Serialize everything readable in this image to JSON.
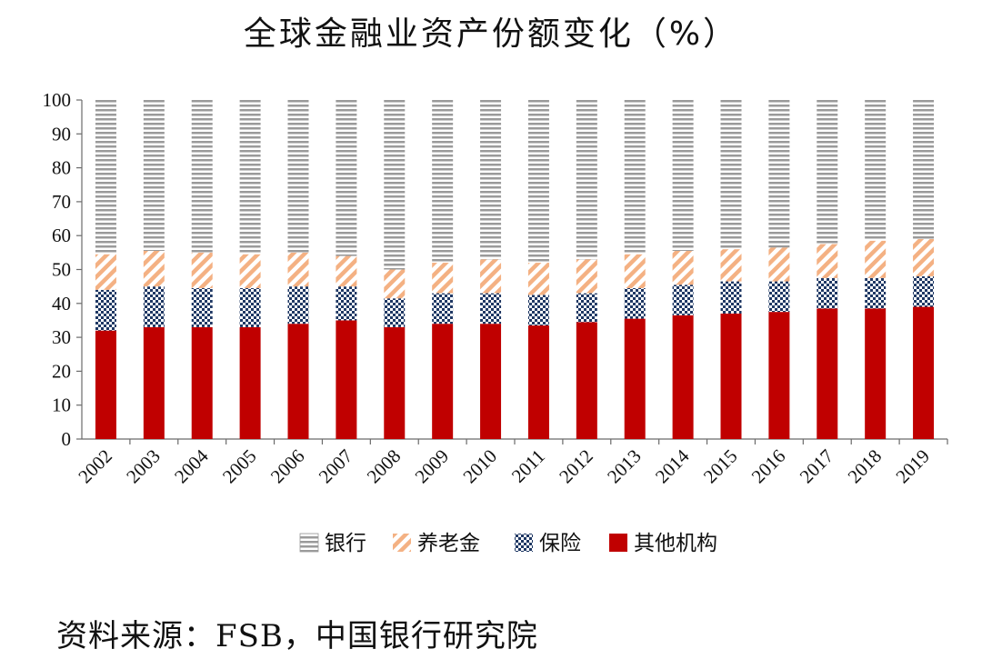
{
  "chart_data": {
    "type": "bar",
    "stacked": true,
    "title": "全球金融业资产份额变化（%）",
    "categories": [
      "2002",
      "2003",
      "2004",
      "2005",
      "2006",
      "2007",
      "2008",
      "2009",
      "2010",
      "2011",
      "2012",
      "2013",
      "2014",
      "2015",
      "2016",
      "2017",
      "2018",
      "2019"
    ],
    "yticks": [
      "0",
      "10",
      "20",
      "30",
      "40",
      "50",
      "60",
      "70",
      "80",
      "90",
      "100"
    ],
    "ylim": [
      0,
      100
    ],
    "series": [
      {
        "name": "其他机构",
        "color": "#c00000",
        "pattern": "solid",
        "values": [
          32,
          33,
          33,
          33,
          34,
          35,
          33,
          34,
          34,
          33.5,
          34.5,
          35.5,
          36.5,
          37,
          37.5,
          38.5,
          38.5,
          39
        ]
      },
      {
        "name": "保险",
        "color": "#1f3864",
        "pattern": "checker",
        "values": [
          12,
          12,
          11.5,
          11.5,
          11,
          10,
          8.5,
          9,
          9,
          9,
          8.5,
          9,
          9,
          9.5,
          9,
          9,
          9,
          9
        ]
      },
      {
        "name": "养老金",
        "color": "#f4b183",
        "pattern": "diagonal",
        "values": [
          10.5,
          10.5,
          10.5,
          10,
          10,
          9,
          8.5,
          9,
          10,
          9.5,
          10,
          10,
          10,
          9.5,
          10,
          10,
          11,
          11
        ]
      },
      {
        "name": "银行",
        "color": "#9a9a9a",
        "pattern": "horizontal",
        "values": [
          45.5,
          44.5,
          45,
          45.5,
          45,
          46,
          50,
          48,
          47,
          48,
          47,
          45.5,
          44.5,
          44,
          43.5,
          42.5,
          41.5,
          41
        ]
      }
    ],
    "legend": {
      "position": "bottom",
      "order": [
        "银行",
        "养老金",
        "保险",
        "其他机构"
      ]
    }
  },
  "source": "资料来源：FSB，中国银行研究院"
}
